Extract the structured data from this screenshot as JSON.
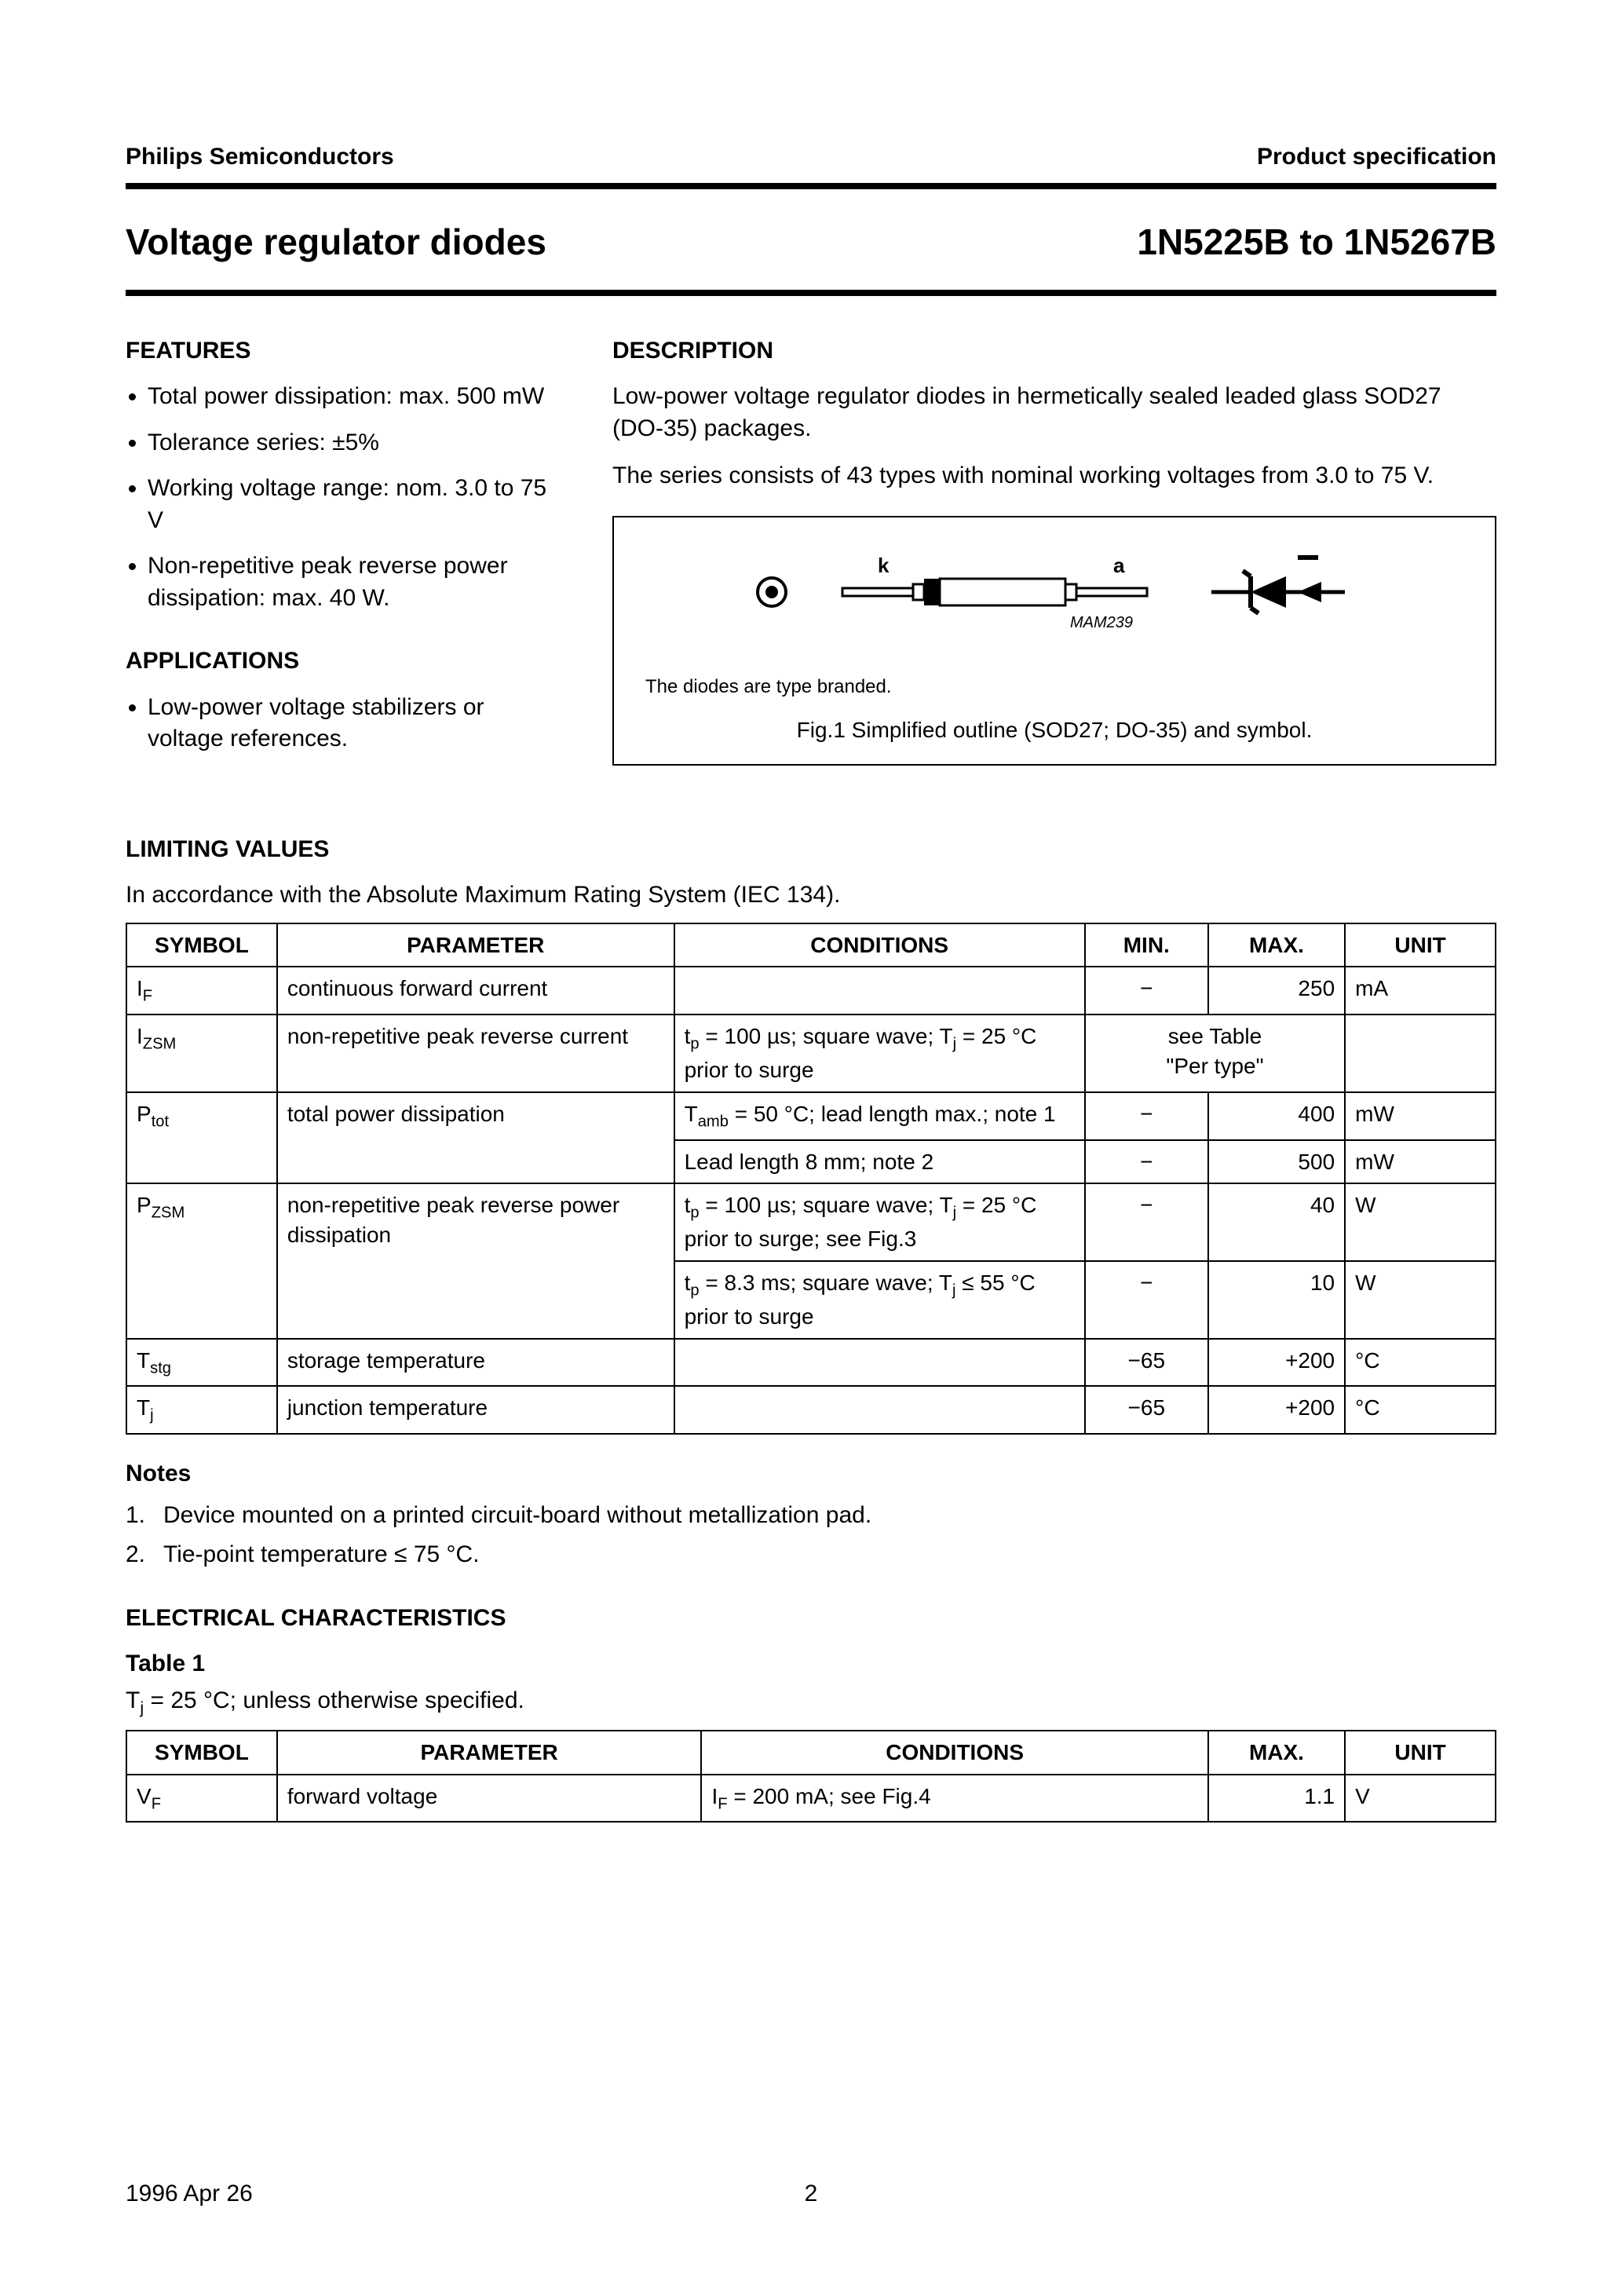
{
  "header": {
    "company": "Philips Semiconductors",
    "doc_type": "Product specification"
  },
  "title": {
    "left": "Voltage regulator diodes",
    "right": "1N5225B to 1N5267B"
  },
  "features": {
    "heading": "FEATURES",
    "items": [
      "Total power dissipation: max. 500 mW",
      "Tolerance series: ±5%",
      "Working voltage range: nom. 3.0 to 75 V",
      "Non-repetitive peak reverse power dissipation: max. 40 W."
    ]
  },
  "applications": {
    "heading": "APPLICATIONS",
    "items": [
      "Low-power voltage stabilizers or voltage references."
    ]
  },
  "description": {
    "heading": "DESCRIPTION",
    "p1": "Low-power voltage regulator diodes in hermetically sealed leaded glass SOD27 (DO-35) packages.",
    "p2": "The series consists of 43 types with nominal working voltages from 3.0 to 75 V."
  },
  "figure1": {
    "label_k": "k",
    "label_a": "a",
    "ref": "MAM239",
    "note": "The diodes are type branded.",
    "caption": "Fig.1  Simplified outline (SOD27; DO-35) and symbol."
  },
  "limiting": {
    "heading": "LIMITING VALUES",
    "subtext": "In accordance with the Absolute Maximum Rating System (IEC 134).",
    "columns": [
      "SYMBOL",
      "PARAMETER",
      "CONDITIONS",
      "MIN.",
      "MAX.",
      "UNIT"
    ],
    "rows": [
      {
        "symbol_html": "I<span class='sub'>F</span>",
        "param": "continuous forward current",
        "cond": "",
        "min": "−",
        "max": "250",
        "unit": "mA"
      },
      {
        "symbol_html": "I<span class='sub'>ZSM</span>",
        "param": "non-repetitive peak reverse current",
        "cond": "t<span class='sub'>p</span> = 100 µs; square wave; T<span class='sub'>j</span> = 25 °C prior to surge",
        "minmax_merged": "see Table \"Per type\"",
        "unit": ""
      },
      {
        "symbol_html": "P<span class='sub'>tot</span>",
        "param": "total power dissipation",
        "cond": "T<span class='sub'>amb</span> = 50 °C; lead length max.; note 1",
        "min": "−",
        "max": "400",
        "unit": "mW",
        "rowspan_sym": 2,
        "rowspan_param": 2
      },
      {
        "cond": "Lead length 8 mm; note 2",
        "min": "−",
        "max": "500",
        "unit": "mW",
        "cont": true
      },
      {
        "symbol_html": "P<span class='sub'>ZSM</span>",
        "param": "non-repetitive peak reverse power dissipation",
        "cond": "t<span class='sub'>p</span> = 100 µs; square wave; T<span class='sub'>j</span> = 25 °C prior to surge; see Fig.3",
        "min": "−",
        "max": "40",
        "unit": "W",
        "rowspan_sym": 2,
        "rowspan_param": 2
      },
      {
        "cond": "t<span class='sub'>p</span> = 8.3 ms; square wave; T<span class='sub'>j</span> ≤ 55 °C prior to surge",
        "min": "−",
        "max": "10",
        "unit": "W",
        "cont": true
      },
      {
        "symbol_html": "T<span class='sub'>stg</span>",
        "param": "storage temperature",
        "cond": "",
        "min": "−65",
        "max": "+200",
        "unit": "°C"
      },
      {
        "symbol_html": "T<span class='sub'>j</span>",
        "param": "junction temperature",
        "cond": "",
        "min": "−65",
        "max": "+200",
        "unit": "°C"
      }
    ]
  },
  "notes": {
    "heading": "Notes",
    "items": [
      "Device mounted on a printed circuit-board without metallization pad.",
      "Tie-point temperature ≤ 75 °C."
    ]
  },
  "electrical": {
    "heading": "ELECTRICAL CHARACTERISTICS",
    "table_label": "Table 1",
    "cond_text_html": "T<span class='sub'>j</span> = 25 °C; unless otherwise specified.",
    "columns": [
      "SYMBOL",
      "PARAMETER",
      "CONDITIONS",
      "MAX.",
      "UNIT"
    ],
    "row": {
      "symbol_html": "V<span class='sub'>F</span>",
      "param": "forward voltage",
      "cond_html": "I<span class='sub'>F</span> = 200 mA; see Fig.4",
      "max": "1.1",
      "unit": "V"
    }
  },
  "footer": {
    "date": "1996 Apr 26",
    "page": "2"
  },
  "colors": {
    "text": "#000000",
    "bg": "#ffffff",
    "rule": "#000000"
  }
}
